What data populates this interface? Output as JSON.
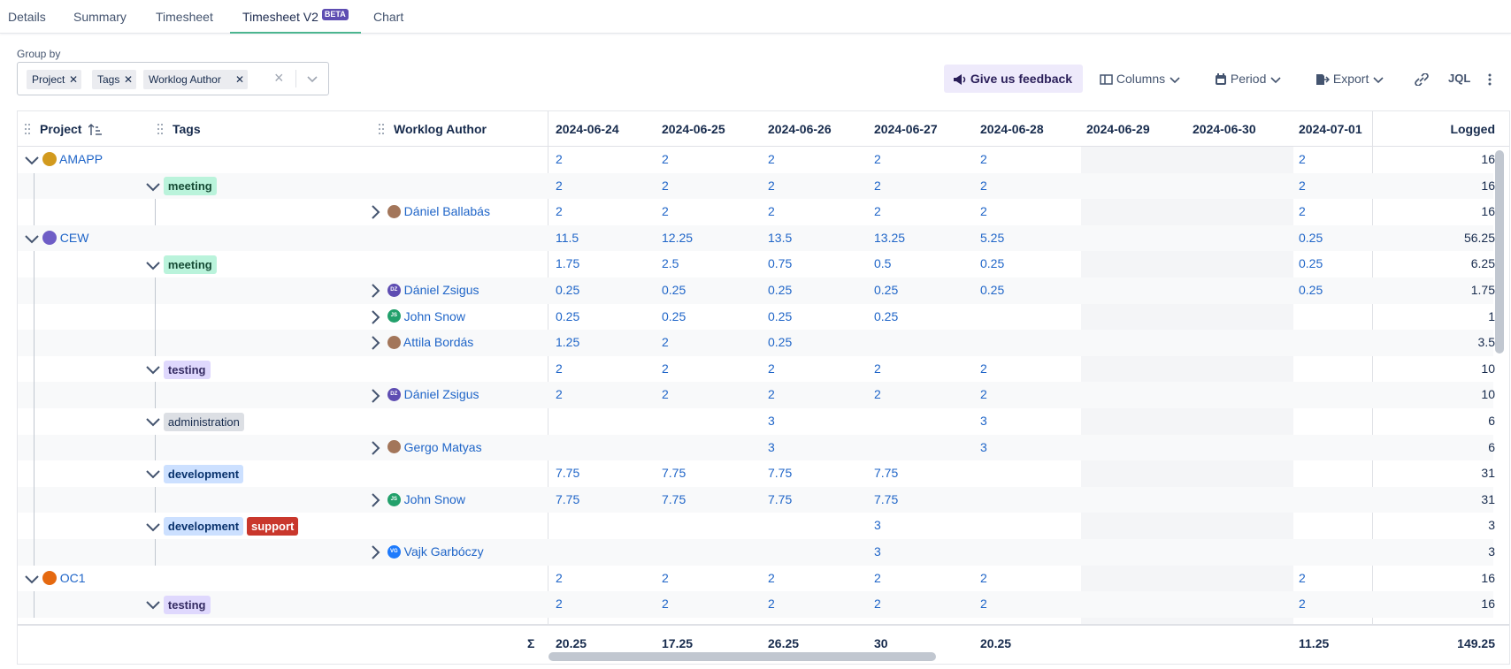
{
  "tabs": [
    {
      "label": "Details"
    },
    {
      "label": "Summary"
    },
    {
      "label": "Timesheet"
    },
    {
      "label": "Timesheet V2",
      "badge": "BETA",
      "active": true
    },
    {
      "label": "Chart"
    }
  ],
  "group_by": {
    "label": "Group by",
    "chips": [
      "Project",
      "Tags",
      "Worklog Author"
    ]
  },
  "toolbar": {
    "feedback": "Give us feedback",
    "columns": "Columns",
    "period": "Period",
    "export": "Export",
    "jql": "JQL"
  },
  "table": {
    "headers": {
      "project": "Project",
      "tags": "Tags",
      "author": "Worklog Author",
      "logged": "Logged"
    },
    "dates": [
      "2024-06-24",
      "2024-06-25",
      "2024-06-26",
      "2024-06-27",
      "2024-06-28",
      "2024-06-29",
      "2024-06-30",
      "2024-07-01"
    ],
    "rows": [
      {
        "level": 0,
        "label": "AMAPP",
        "icon": "amapp-project-icon",
        "values": [
          "2",
          "2",
          "2",
          "2",
          "2",
          "",
          "",
          "2"
        ],
        "logged": "16"
      },
      {
        "level": 1,
        "tags": [
          "meeting"
        ],
        "values": [
          "2",
          "2",
          "2",
          "2",
          "2",
          "",
          "",
          "2"
        ],
        "logged": "16"
      },
      {
        "level": 2,
        "label": "Dániel Ballabás",
        "avatar": "",
        "values": [
          "2",
          "2",
          "2",
          "2",
          "2",
          "",
          "",
          "2"
        ],
        "logged": "16"
      },
      {
        "level": 0,
        "label": "CEW",
        "icon": "cew-project-icon",
        "values": [
          "11.5",
          "12.25",
          "13.5",
          "13.25",
          "5.25",
          "",
          "",
          "0.25"
        ],
        "logged": "56.25"
      },
      {
        "level": 1,
        "tags": [
          "meeting"
        ],
        "values": [
          "1.75",
          "2.5",
          "0.75",
          "0.5",
          "0.25",
          "",
          "",
          "0.25"
        ],
        "logged": "6.25"
      },
      {
        "level": 2,
        "label": "Dániel Zsigus",
        "avatar": "DZ",
        "values": [
          "0.25",
          "0.25",
          "0.25",
          "0.25",
          "0.25",
          "",
          "",
          "0.25"
        ],
        "logged": "1.75"
      },
      {
        "level": 2,
        "label": "John Snow",
        "avatar": "JS",
        "values": [
          "0.25",
          "0.25",
          "0.25",
          "0.25",
          "",
          "",
          "",
          ""
        ],
        "logged": "1"
      },
      {
        "level": 2,
        "label": "Attila Bordás",
        "avatar": "",
        "values": [
          "1.25",
          "2",
          "0.25",
          "",
          "",
          "",
          "",
          ""
        ],
        "logged": "3.5"
      },
      {
        "level": 1,
        "tags": [
          "testing"
        ],
        "values": [
          "2",
          "2",
          "2",
          "2",
          "2",
          "",
          "",
          ""
        ],
        "logged": "10"
      },
      {
        "level": 2,
        "label": "Dániel Zsigus",
        "avatar": "DZ",
        "values": [
          "2",
          "2",
          "2",
          "2",
          "2",
          "",
          "",
          ""
        ],
        "logged": "10"
      },
      {
        "level": 1,
        "tags": [
          "administration"
        ],
        "values": [
          "",
          "",
          "3",
          "",
          "3",
          "",
          "",
          ""
        ],
        "logged": "6"
      },
      {
        "level": 2,
        "label": "Gergo Matyas",
        "avatar": "",
        "values": [
          "",
          "",
          "3",
          "",
          "3",
          "",
          "",
          ""
        ],
        "logged": "6"
      },
      {
        "level": 1,
        "tags": [
          "development"
        ],
        "values": [
          "7.75",
          "7.75",
          "7.75",
          "7.75",
          "",
          "",
          "",
          ""
        ],
        "logged": "31"
      },
      {
        "level": 2,
        "label": "John Snow",
        "avatar": "JS",
        "values": [
          "7.75",
          "7.75",
          "7.75",
          "7.75",
          "",
          "",
          "",
          ""
        ],
        "logged": "31"
      },
      {
        "level": 1,
        "tags": [
          "development",
          "support"
        ],
        "values": [
          "",
          "",
          "",
          "3",
          "",
          "",
          "",
          ""
        ],
        "logged": "3"
      },
      {
        "level": 2,
        "label": "Vajk Garbóczy",
        "avatar": "VG",
        "values": [
          "",
          "",
          "",
          "3",
          "",
          "",
          "",
          ""
        ],
        "logged": "3"
      },
      {
        "level": 0,
        "label": "OC1",
        "icon": "oc1-project-icon",
        "values": [
          "2",
          "2",
          "2",
          "2",
          "2",
          "",
          "",
          "2"
        ],
        "logged": "16"
      },
      {
        "level": 1,
        "tags": [
          "testing"
        ],
        "values": [
          "2",
          "2",
          "2",
          "2",
          "2",
          "",
          "",
          "2"
        ],
        "logged": "16"
      }
    ],
    "totals": {
      "symbol": "Σ",
      "values": [
        "20.25",
        "17.25",
        "26.25",
        "30",
        "20.25",
        "",
        "",
        "11.25"
      ],
      "logged": "149.25"
    }
  },
  "colors": {
    "accent": "#4bb58f",
    "link": "#1f65c8",
    "beta_badge": "#5e4db2",
    "feedback_bg": "#eeeafb",
    "weekend_bg": "#f4f5f7"
  }
}
